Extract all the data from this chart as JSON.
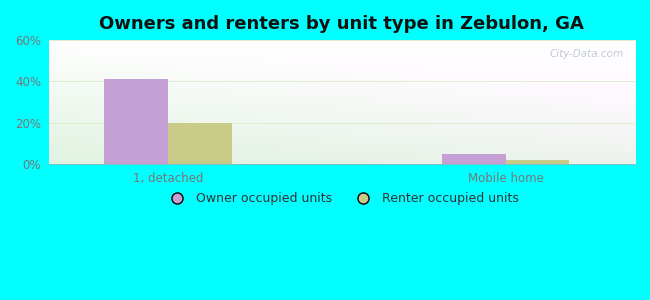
{
  "title": "Owners and renters by unit type in Zebulon, GA",
  "categories": [
    "1, detached",
    "Mobile home"
  ],
  "owner_values": [
    41,
    5
  ],
  "renter_values": [
    20,
    2
  ],
  "owner_color": "#C4A0D4",
  "renter_color": "#C8CC88",
  "ylim": [
    0,
    60
  ],
  "yticks": [
    0,
    20,
    40,
    60
  ],
  "yticklabels": [
    "0%",
    "20%",
    "40%",
    "60%"
  ],
  "bar_width": 0.32,
  "background_outer": "#00FFFF",
  "grid_color": "#CCDDCC",
  "watermark": "City-Data.com",
  "legend_owner": "Owner occupied units",
  "legend_renter": "Renter occupied units",
  "title_fontsize": 13,
  "tick_fontsize": 8.5,
  "group_positions": [
    0.5,
    2.2
  ]
}
